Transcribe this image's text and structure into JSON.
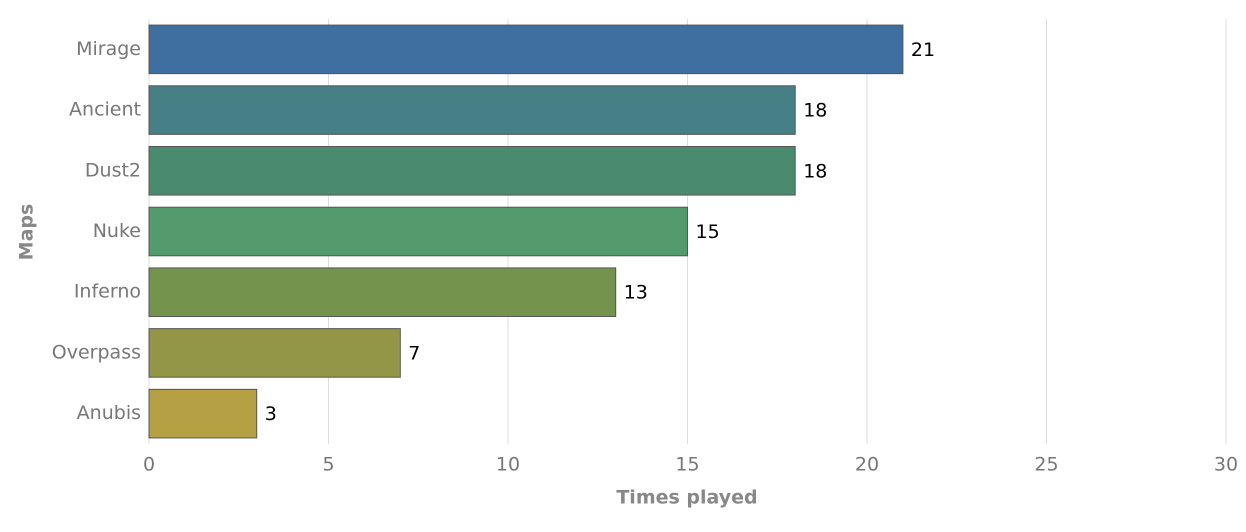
{
  "chart_data": {
    "type": "bar",
    "orientation": "horizontal",
    "categories": [
      "Mirage",
      "Ancient",
      "Dust2",
      "Nuke",
      "Inferno",
      "Overpass",
      "Anubis"
    ],
    "values": [
      21,
      18,
      18,
      15,
      13,
      7,
      3
    ],
    "colors": [
      "#3e6fa0",
      "#467f86",
      "#4a8b70",
      "#539b6c",
      "#74944e",
      "#949647",
      "#b5a043"
    ],
    "xlabel": "Times played",
    "ylabel": "Maps",
    "xlim": [
      0,
      30
    ],
    "xticks": [
      0,
      5,
      10,
      15,
      20,
      25,
      30
    ],
    "grid": true
  }
}
